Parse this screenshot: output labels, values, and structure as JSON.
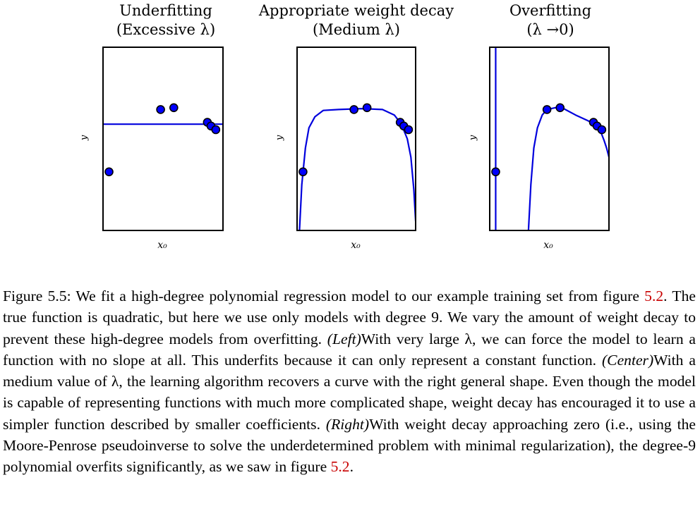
{
  "panels": [
    {
      "title_line1": "Underfitting",
      "title_line2": "(Excessive λ)",
      "ylabel": "y",
      "xlabel": "x₀"
    },
    {
      "title_line1": "Appropriate weight decay",
      "title_line2": "(Medium λ)",
      "ylabel": "y",
      "xlabel": "x₀"
    },
    {
      "title_line1": "Overfitting",
      "title_line2": "(λ →0)",
      "ylabel": "y",
      "xlabel": "x₀"
    }
  ],
  "caption": {
    "figure_label": "Figure 5.5:",
    "s1": " We fit a high-degree polynomial regression model to our example training set from figure ",
    "ref1": "5.2",
    "s2": ". The true function is quadratic, but here we use only models with degree 9. We vary the amount of weight decay to prevent these high-degree models from overfitting. ",
    "left": "(Left)",
    "s3": "With very large λ, we can force the model to learn a function with no slope at all. This underfits because it can only represent a constant function. ",
    "center": "(Center)",
    "s4": "With a medium value of λ, the learning algorithm recovers a curve with the right general shape. Even though the model is capable of representing functions with much more complicated shape, weight decay has encouraged it to use a simpler function described by smaller coefficients. ",
    "right": "(Right)",
    "s5": "With weight decay approaching zero (i.e., using the Moore-Penrose pseudoinverse to solve the underdetermined problem with minimal regularization), the degree-9 polynomial overfits significantly, as we saw in figure ",
    "ref2": "5.2",
    "s6": "."
  },
  "colors": {
    "curve": "#0000dd",
    "point": "#0000ff",
    "ref": "#c80000"
  },
  "chart_data": [
    {
      "type": "scatter",
      "title": "Underfitting (Excessive λ)",
      "xlabel": "x₀",
      "ylabel": "y",
      "xlim": [
        0,
        1
      ],
      "ylim": [
        0,
        1
      ],
      "points": [
        [
          0.05,
          0.32
        ],
        [
          0.48,
          0.66
        ],
        [
          0.59,
          0.67
        ],
        [
          0.87,
          0.59
        ],
        [
          0.9,
          0.57
        ],
        [
          0.94,
          0.55
        ]
      ],
      "curve": [
        [
          0,
          0.58
        ],
        [
          1,
          0.58
        ]
      ]
    },
    {
      "type": "scatter",
      "title": "Appropriate weight decay (Medium λ)",
      "xlabel": "x₀",
      "ylabel": "y",
      "xlim": [
        0,
        1
      ],
      "ylim": [
        0,
        1
      ],
      "points": [
        [
          0.05,
          0.32
        ],
        [
          0.48,
          0.66
        ],
        [
          0.59,
          0.67
        ],
        [
          0.87,
          0.59
        ],
        [
          0.9,
          0.57
        ],
        [
          0.94,
          0.55
        ]
      ],
      "curve": [
        [
          0.02,
          0.0
        ],
        [
          0.04,
          0.25
        ],
        [
          0.07,
          0.45
        ],
        [
          0.1,
          0.56
        ],
        [
          0.15,
          0.62
        ],
        [
          0.22,
          0.655
        ],
        [
          0.35,
          0.66
        ],
        [
          0.55,
          0.665
        ],
        [
          0.72,
          0.66
        ],
        [
          0.82,
          0.63
        ],
        [
          0.88,
          0.58
        ],
        [
          0.93,
          0.5
        ],
        [
          0.96,
          0.4
        ],
        [
          0.985,
          0.22
        ],
        [
          1.0,
          0.05
        ]
      ]
    },
    {
      "type": "scatter",
      "title": "Overfitting (λ →0)",
      "xlabel": "x₀",
      "ylabel": "y",
      "xlim": [
        0,
        1
      ],
      "ylim": [
        0,
        1
      ],
      "points": [
        [
          0.05,
          0.32
        ],
        [
          0.48,
          0.66
        ],
        [
          0.59,
          0.67
        ],
        [
          0.87,
          0.59
        ],
        [
          0.9,
          0.57
        ],
        [
          0.94,
          0.55
        ]
      ],
      "curve": [
        [
          0.325,
          0.0
        ],
        [
          0.345,
          0.25
        ],
        [
          0.37,
          0.45
        ],
        [
          0.4,
          0.56
        ],
        [
          0.44,
          0.63
        ],
        [
          0.48,
          0.66
        ],
        [
          0.55,
          0.67
        ],
        [
          0.62,
          0.665
        ],
        [
          0.72,
          0.63
        ],
        [
          0.82,
          0.6
        ],
        [
          0.88,
          0.58
        ],
        [
          0.93,
          0.54
        ],
        [
          0.96,
          0.49
        ],
        [
          0.98,
          0.45
        ],
        [
          1.0,
          0.4
        ]
      ],
      "vertical_line_x": 0.05
    }
  ]
}
